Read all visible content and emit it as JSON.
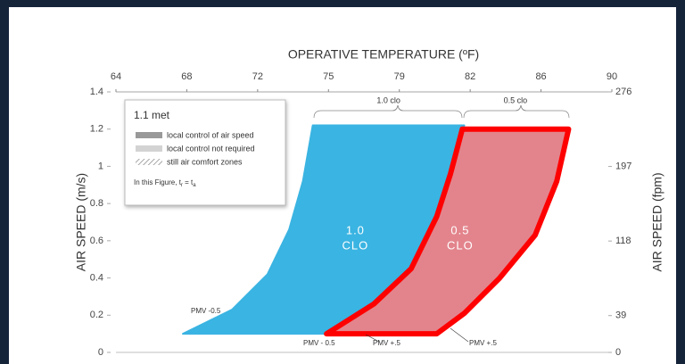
{
  "chart_data": {
    "type": "area",
    "title": "OPERATIVE TEMPERATURE (ºF)",
    "y_label": "AIR SPEED (m/s)",
    "y2_label": "AIR SPEED (fpm)",
    "xlim": [
      64.4,
      89.6
    ],
    "xticks": [
      {
        "value": 64.4,
        "label": "64"
      },
      68,
      {
        "value": 71.6,
        "label": "72"
      },
      {
        "value": 75.2,
        "label": "75"
      },
      {
        "value": 78.8,
        "label": "79"
      },
      {
        "value": 82.4,
        "label": "82"
      },
      86,
      {
        "value": 89.6,
        "label": "90"
      }
    ],
    "ylim": [
      0,
      1.4
    ],
    "yticks": [
      0,
      0.2,
      0.4,
      0.6,
      0.8,
      1,
      1.2,
      1.4
    ],
    "y2lim": [
      0,
      276
    ],
    "y2ticks": [
      0,
      39,
      118,
      197,
      276
    ],
    "series": [
      {
        "name": "1.0 clo",
        "label_lines": [
          "1.0",
          "CLO"
        ],
        "color": "#3ab4e2",
        "stroke": "#3ab4e2",
        "x": [
          67.8,
          70.3,
          72.1,
          73.2,
          73.9,
          74.4,
          82.1,
          81.4,
          80.7,
          79.4,
          77.5,
          75.1
        ],
        "values": [
          0.1,
          0.23,
          0.42,
          0.66,
          0.92,
          1.22,
          1.22,
          0.96,
          0.73,
          0.45,
          0.26,
          0.1
        ]
      },
      {
        "name": "0.5 clo",
        "label_lines": [
          "0.5",
          "CLO"
        ],
        "color": "#e27d86",
        "stroke": "#ff0000",
        "x": [
          75.1,
          77.5,
          79.4,
          80.7,
          81.4,
          82.0,
          87.4,
          86.8,
          85.7,
          83.9,
          82.1,
          80.7
        ],
        "values": [
          0.1,
          0.26,
          0.45,
          0.73,
          0.96,
          1.2,
          1.2,
          0.92,
          0.63,
          0.4,
          0.21,
          0.1
        ]
      }
    ],
    "legend": {
      "title": "1.1 met",
      "items": [
        "local control of air speed",
        "local control not required",
        "still air comfort zones"
      ],
      "note": [
        "In this Figure, t",
        "r",
        " = t",
        "a"
      ]
    },
    "annotations": [
      "PMV -0.5",
      "PMV - 0.5",
      "PMV +.5",
      "PMV +.5"
    ]
  }
}
